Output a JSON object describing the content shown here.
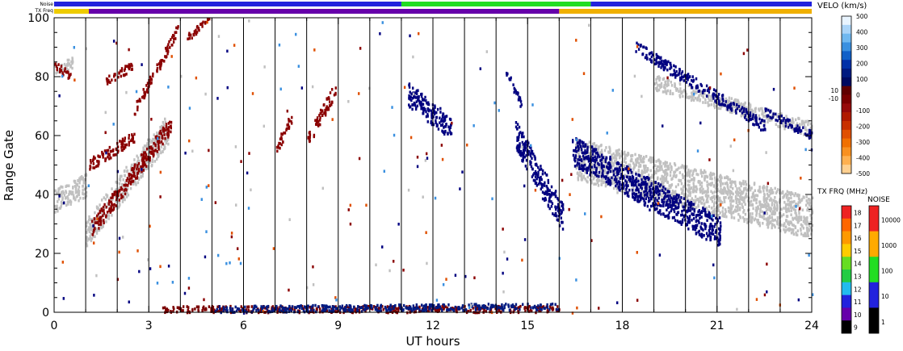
{
  "chart_data": {
    "type": "heatmap",
    "title": "",
    "xlabel": "UT hours",
    "ylabel": "Range Gate",
    "xlim": [
      0,
      24
    ],
    "ylim": [
      0,
      100
    ],
    "x_ticks": [
      "0",
      "3",
      "6",
      "9",
      "12",
      "15",
      "18",
      "21",
      "24"
    ],
    "x_tick_values": [
      0,
      3,
      6,
      9,
      12,
      15,
      18,
      21,
      24
    ],
    "y_ticks": [
      "0",
      "20",
      "40",
      "60",
      "80",
      "100"
    ],
    "y_tick_values": [
      0,
      20,
      40,
      60,
      80,
      100
    ],
    "scan_boundaries_ut": [
      1,
      2,
      3,
      4,
      5,
      6,
      7,
      8,
      9,
      10,
      11,
      12,
      13,
      14,
      15,
      16,
      17,
      18,
      19,
      20,
      21,
      22,
      23
    ],
    "status_bars": {
      "noise_label": "Noise",
      "txfreq_label": "TX Freq",
      "noise_segments": [
        {
          "from": 0,
          "to": 11,
          "color": "#2222dd"
        },
        {
          "from": 11,
          "to": 17,
          "color": "#22dd22"
        },
        {
          "from": 17,
          "to": 24,
          "color": "#2222dd"
        }
      ],
      "txfreq_segments": [
        {
          "from": 0,
          "to": 1.1,
          "color": "#eecc00"
        },
        {
          "from": 1.1,
          "to": 16.0,
          "color": "#6600aa"
        },
        {
          "from": 16.0,
          "to": 24,
          "color": "#f0b000"
        }
      ]
    },
    "velocity_scale": {
      "title": "VELO (km/s)",
      "tick_labels": [
        "500",
        "400",
        "300",
        "200",
        "100",
        "0",
        "-100",
        "-200",
        "-300",
        "-400",
        "-500"
      ],
      "side_labels": [
        "10",
        "-10"
      ],
      "colors": [
        "#e8f4ff",
        "#aad4f8",
        "#70b8f0",
        "#3a90e0",
        "#1060c8",
        "#0030a8",
        "#001a80",
        "#000a60",
        "#600000",
        "#7a0000",
        "#960a0a",
        "#b01a00",
        "#c83000",
        "#e05000",
        "#f07000",
        "#f89020",
        "#ffb050",
        "#ffd090"
      ]
    },
    "txfreq_scale": {
      "title": "TX FRQ (MHz)",
      "tick_labels": [
        "18",
        "17",
        "16",
        "15",
        "14",
        "13",
        "12",
        "11",
        "10",
        "9"
      ],
      "colors": [
        "#ee2222",
        "#ff6600",
        "#ff9900",
        "#ffcc00",
        "#66dd22",
        "#22cc44",
        "#22bbee",
        "#2222dd",
        "#6600aa",
        "#000000"
      ]
    },
    "noise_scale": {
      "title": "NOISE",
      "tick_labels": [
        "10000",
        "1000",
        "100",
        "10",
        "1"
      ],
      "colors": [
        "#ee2222",
        "#ffaa00",
        "#22dd22",
        "#2222dd",
        "#000000"
      ]
    },
    "series": [
      {
        "color": "#c0c0c0",
        "bands": [
          {
            "t0": 0.0,
            "t1": 0.6,
            "g0": 82,
            "g1": 85,
            "w": 4
          },
          {
            "t0": 0.0,
            "t1": 1.0,
            "g0": 38,
            "g1": 43,
            "w": 8
          },
          {
            "t0": 1.0,
            "t1": 3.6,
            "g0": 27,
            "g1": 62,
            "w": 10
          },
          {
            "t0": 16.5,
            "t1": 24,
            "g0": 52,
            "g1": 32,
            "w": 14
          },
          {
            "t0": 19.0,
            "t1": 24,
            "g0": 78,
            "g1": 62,
            "w": 5
          }
        ]
      },
      {
        "color": "#8b0000",
        "bands": [
          {
            "t0": 0.0,
            "t1": 0.5,
            "g0": 84,
            "g1": 80,
            "w": 3
          },
          {
            "t0": 1.1,
            "t1": 3.7,
            "g0": 27,
            "g1": 64,
            "w": 6
          },
          {
            "t0": 1.1,
            "t1": 2.6,
            "g0": 50,
            "g1": 60,
            "w": 4
          },
          {
            "t0": 1.6,
            "t1": 2.5,
            "g0": 78,
            "g1": 84,
            "w": 3
          },
          {
            "t0": 2.5,
            "t1": 3.9,
            "g0": 68,
            "g1": 96,
            "w": 4
          },
          {
            "t0": 4.2,
            "t1": 4.9,
            "g0": 93,
            "g1": 99,
            "w": 3
          },
          {
            "t0": 7.0,
            "t1": 7.5,
            "g0": 55,
            "g1": 66,
            "w": 4
          },
          {
            "t0": 8.0,
            "t1": 8.9,
            "g0": 58,
            "g1": 76,
            "w": 5
          }
        ]
      },
      {
        "color": "#000080",
        "bands": [
          {
            "t0": 11.2,
            "t1": 12.6,
            "g0": 74,
            "g1": 62,
            "w": 8
          },
          {
            "t0": 14.3,
            "t1": 14.8,
            "g0": 82,
            "g1": 70,
            "w": 3
          },
          {
            "t0": 14.6,
            "t1": 16.1,
            "g0": 60,
            "g1": 32,
            "w": 10
          },
          {
            "t0": 16.4,
            "t1": 21.1,
            "g0": 55,
            "g1": 27,
            "w": 10
          },
          {
            "t0": 18.4,
            "t1": 22.5,
            "g0": 90,
            "g1": 63,
            "w": 4
          },
          {
            "t0": 22.5,
            "t1": 24,
            "g0": 68,
            "g1": 60,
            "w": 3
          }
        ]
      },
      {
        "color": "#7a0000",
        "bands": [
          {
            "t0": 3.4,
            "t1": 16.0,
            "g0": 1,
            "g1": 1,
            "w": 2.2
          }
        ]
      },
      {
        "color": "#001a80",
        "bands": [
          {
            "t0": 5.0,
            "t1": 16.0,
            "g0": 1,
            "g1": 2,
            "w": 2.2
          }
        ]
      }
    ]
  }
}
